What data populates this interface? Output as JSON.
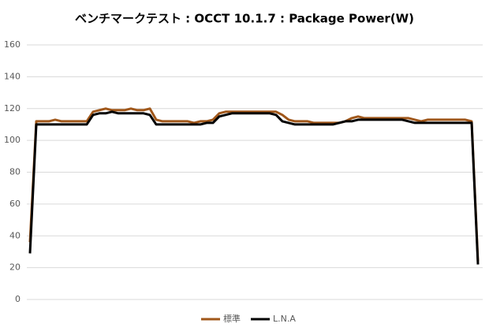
{
  "chart_data": {
    "type": "line",
    "title": "ベンチマークテスト : OCCT 10.1.7 : Package Power(W)",
    "categories": [
      null,
      null,
      null,
      null,
      null,
      null,
      null,
      null,
      null,
      null,
      null,
      null,
      null,
      null,
      null,
      null,
      null,
      null,
      null,
      null,
      null,
      null,
      null,
      null,
      null,
      null,
      null,
      null,
      null,
      null,
      null,
      null,
      null,
      null,
      null,
      null,
      null,
      null,
      null,
      null,
      null,
      null,
      null,
      null,
      null,
      null,
      null,
      null,
      null,
      null,
      null,
      null,
      null,
      null,
      null,
      null,
      null,
      null,
      null,
      null,
      null,
      null,
      null,
      null,
      null,
      null,
      null,
      null,
      null,
      null,
      null,
      null
    ],
    "series": [
      {
        "name": "標準",
        "color": "#a0571a",
        "values": [
          36,
          112,
          112,
          112,
          113,
          112,
          112,
          112,
          112,
          112,
          118,
          119,
          120,
          119,
          119,
          119,
          120,
          119,
          119,
          120,
          113,
          112,
          112,
          112,
          112,
          112,
          111,
          112,
          112,
          113,
          117,
          118,
          118,
          118,
          118,
          118,
          118,
          118,
          118,
          118,
          116,
          113,
          112,
          112,
          112,
          111,
          111,
          111,
          111,
          111,
          112,
          114,
          115,
          114,
          114,
          114,
          114,
          114,
          114,
          114,
          114,
          113,
          112,
          113,
          113,
          113,
          113,
          113,
          113,
          113,
          112,
          24
        ]
      },
      {
        "name": "L.N.A",
        "color": "#000000",
        "values": [
          29,
          110,
          110,
          110,
          110,
          110,
          110,
          110,
          110,
          110,
          116,
          117,
          117,
          118,
          117,
          117,
          117,
          117,
          117,
          116,
          110,
          110,
          110,
          110,
          110,
          110,
          110,
          110,
          111,
          111,
          115,
          116,
          117,
          117,
          117,
          117,
          117,
          117,
          117,
          116,
          112,
          111,
          110,
          110,
          110,
          110,
          110,
          110,
          110,
          111,
          112,
          112,
          113,
          113,
          113,
          113,
          113,
          113,
          113,
          113,
          112,
          111,
          111,
          111,
          111,
          111,
          111,
          111,
          111,
          111,
          111,
          22
        ]
      }
    ],
    "ylim": [
      0,
      160
    ],
    "yticks": [
      0,
      20,
      40,
      60,
      80,
      100,
      120,
      140,
      160
    ],
    "grid": true,
    "legend": "bottom"
  }
}
